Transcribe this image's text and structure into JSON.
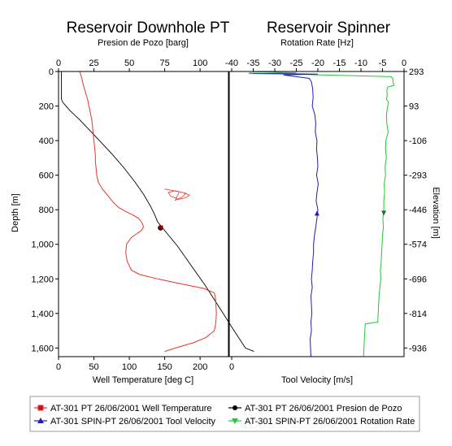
{
  "chart_data": [
    {
      "type": "line",
      "title": "Reservoir Downhole PT",
      "ylabel": "Depth [m]",
      "ylim": [
        0,
        1650
      ],
      "yticks": [
        "0",
        "200",
        "400",
        "600",
        "800",
        "1,000",
        "1,200",
        "1,400",
        "1,600"
      ],
      "top_axis": {
        "label": "Presion de Pozo [barg]",
        "range": [
          0,
          120
        ],
        "ticks": [
          "0",
          "25",
          "50",
          "75",
          "100"
        ]
      },
      "bottom_axis": {
        "label": "Well Temperature [deg C]",
        "range": [
          0,
          240
        ],
        "ticks": [
          "0",
          "50",
          "100",
          "150",
          "200"
        ]
      },
      "grid": false,
      "series": [
        {
          "name": "AT-301 PT 26/06/2001 Well Temperature",
          "axis": "bottom",
          "color": "#e8342a",
          "points": [
            [
              30,
              0
            ],
            [
              33,
              40
            ],
            [
              35,
              80
            ],
            [
              38,
              120
            ],
            [
              41,
              160
            ],
            [
              43,
              200
            ],
            [
              45,
              240
            ],
            [
              47,
              280
            ],
            [
              48,
              320
            ],
            [
              49,
              360
            ],
            [
              50,
              400
            ],
            [
              51,
              440
            ],
            [
              52,
              480
            ],
            [
              52,
              520
            ],
            [
              53,
              560
            ],
            [
              54,
              600
            ],
            [
              56,
              640
            ],
            [
              62,
              680
            ],
            [
              70,
              720
            ],
            [
              78,
              760
            ],
            [
              86,
              790
            ],
            [
              95,
              810
            ],
            [
              105,
              830
            ],
            [
              113,
              850
            ],
            [
              117,
              870
            ],
            [
              119,
              885
            ],
            [
              120,
              900
            ],
            [
              117,
              920
            ],
            [
              110,
              940
            ],
            [
              103,
              960
            ],
            [
              96,
              1000
            ],
            [
              95,
              1050
            ],
            [
              97,
              1100
            ],
            [
              103,
              1150
            ],
            [
              115,
              1175
            ],
            [
              140,
              1200
            ],
            [
              175,
              1230
            ],
            [
              205,
              1255
            ],
            [
              220,
              1280
            ],
            [
              222,
              1320
            ],
            [
              223,
              1400
            ],
            [
              222,
              1460
            ],
            [
              220,
              1500
            ],
            [
              208,
              1540
            ],
            [
              190,
              1570
            ],
            [
              165,
              1600
            ],
            [
              150,
              1620
            ]
          ],
          "wiggles": [
            [
              150,
              680
            ],
            [
              175,
              700
            ],
            [
              185,
              715
            ],
            [
              180,
              730
            ],
            [
              170,
              740
            ],
            [
              158,
              720
            ],
            [
              155,
              700
            ],
            [
              165,
              690
            ],
            [
              180,
              705
            ],
            [
              175,
              725
            ],
            [
              165,
              745
            ],
            [
              170,
              700
            ]
          ]
        },
        {
          "name": "AT-301 PT 26/06/2001 Presion de Pozo",
          "axis": "top",
          "color": "#000000",
          "points": [
            [
              2,
              0
            ],
            [
              2,
              80
            ],
            [
              2,
              160
            ],
            [
              3,
              178
            ],
            [
              8,
              225
            ],
            [
              15,
              280
            ],
            [
              22,
              340
            ],
            [
              30,
              410
            ],
            [
              38,
              480
            ],
            [
              46,
              555
            ],
            [
              54,
              640
            ],
            [
              60,
              710
            ],
            [
              65,
              780
            ],
            [
              68,
              830
            ],
            [
              70,
              870
            ],
            [
              73,
              900
            ],
            [
              78,
              950
            ],
            [
              84,
              1010
            ],
            [
              90,
              1080
            ],
            [
              96,
              1150
            ],
            [
              103,
              1230
            ],
            [
              110,
              1320
            ],
            [
              117,
              1410
            ],
            [
              124,
              1500
            ],
            [
              132,
              1600
            ],
            [
              138,
              1620
            ]
          ],
          "markers": [
            [
              72,
              905
            ]
          ]
        }
      ]
    },
    {
      "type": "line",
      "title": "Reservoir Spinner",
      "ylabel": "Elevation [m]",
      "ylim": [
        0,
        1650
      ],
      "yticks": [
        "293",
        "93",
        "-106",
        "-293",
        "-446",
        "-574",
        "-696",
        "-814",
        "-936"
      ],
      "top_axis": {
        "label": "Rotation Rate [Hz]",
        "range": [
          -40,
          0
        ],
        "ticks": [
          "-40",
          "-35",
          "-30",
          "-25",
          "-20",
          "-15",
          "-10",
          "-5",
          "0"
        ]
      },
      "bottom_axis": {
        "label": "Tool Velocity [m/s]",
        "ticks": [
          "0"
        ]
      },
      "grid": false,
      "series": [
        {
          "name": "AT-301 SPIN-PT 26/06/2001 Tool Velocity",
          "axis": "top",
          "color": "#1f1fb8",
          "points": [
            [
              -36,
              10
            ],
            [
              -20,
              15
            ],
            [
              -28,
              20
            ],
            [
              -25,
              30
            ],
            [
              -22,
              40
            ],
            [
              -21.5,
              60
            ],
            [
              -21.2,
              100
            ],
            [
              -21.1,
              150
            ],
            [
              -21.3,
              200
            ],
            [
              -20.7,
              250
            ],
            [
              -20.5,
              300
            ],
            [
              -20.6,
              350
            ],
            [
              -20.2,
              400
            ],
            [
              -20.3,
              450
            ],
            [
              -20.1,
              500
            ],
            [
              -20.0,
              550
            ],
            [
              -20.3,
              600
            ],
            [
              -19.9,
              650
            ],
            [
              -20.2,
              700
            ],
            [
              -20.4,
              750
            ],
            [
              -20.0,
              800
            ],
            [
              -20.2,
              850
            ],
            [
              -20.5,
              900
            ],
            [
              -20.8,
              950
            ],
            [
              -21.0,
              1000
            ],
            [
              -21.0,
              1050
            ],
            [
              -21.2,
              1100
            ],
            [
              -21.3,
              1150
            ],
            [
              -21.5,
              1200
            ],
            [
              -21.3,
              1250
            ],
            [
              -21.6,
              1300
            ],
            [
              -21.5,
              1350
            ],
            [
              -21.4,
              1400
            ],
            [
              -21.6,
              1450
            ],
            [
              -21.5,
              1500
            ],
            [
              -21.8,
              1550
            ],
            [
              -21.7,
              1600
            ],
            [
              -21.6,
              1650
            ]
          ],
          "markers": [
            [
              -20.2,
              820
            ]
          ]
        },
        {
          "name": "AT-301 SPIN-PT 26/06/2001 Rotation Rate",
          "axis": "top",
          "color": "#22c93a",
          "points": [
            [
              -36,
              0
            ],
            [
              -25,
              8
            ],
            [
              -35,
              12
            ],
            [
              -22,
              18
            ],
            [
              -15,
              22
            ],
            [
              -3,
              30
            ],
            [
              -2.5,
              45
            ],
            [
              -2.6,
              60
            ],
            [
              -2.3,
              80
            ],
            [
              -3.8,
              90
            ],
            [
              -4.0,
              110
            ],
            [
              -3.9,
              140
            ],
            [
              -4.1,
              160
            ],
            [
              -3.6,
              180
            ],
            [
              -3.8,
              200
            ],
            [
              -4.1,
              250
            ],
            [
              -4.0,
              300
            ],
            [
              -3.7,
              350
            ],
            [
              -4.2,
              400
            ],
            [
              -4.3,
              450
            ],
            [
              -4.1,
              500
            ],
            [
              -4.4,
              550
            ],
            [
              -4.3,
              600
            ],
            [
              -4.6,
              650
            ],
            [
              -4.5,
              700
            ],
            [
              -4.7,
              750
            ],
            [
              -4.7,
              800
            ],
            [
              -4.9,
              850
            ],
            [
              -4.8,
              900
            ],
            [
              -5.0,
              950
            ],
            [
              -5.1,
              1000
            ],
            [
              -5.2,
              1050
            ],
            [
              -5.3,
              1100
            ],
            [
              -5.5,
              1150
            ],
            [
              -5.4,
              1200
            ],
            [
              -5.6,
              1250
            ],
            [
              -5.8,
              1300
            ],
            [
              -5.9,
              1350
            ],
            [
              -6.0,
              1400
            ],
            [
              -6.1,
              1450
            ],
            [
              -9.0,
              1460
            ],
            [
              -9.1,
              1500
            ],
            [
              -9.2,
              1550
            ],
            [
              -9.3,
              1600
            ],
            [
              -9.4,
              1650
            ]
          ],
          "markers": [
            [
              -4.7,
              820
            ]
          ]
        }
      ]
    }
  ]
}
